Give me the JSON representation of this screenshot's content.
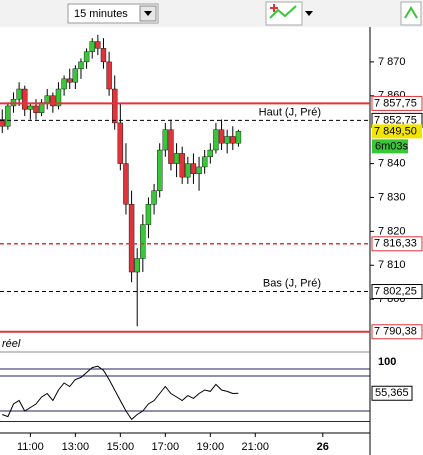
{
  "toolbar": {
    "timeframe": "15 minutes"
  },
  "chart_data": [
    {
      "type": "candlestick",
      "note": "réel",
      "up_color": "#39c639",
      "down_color": "#e0333a",
      "x": [
        9.75,
        10,
        10.25,
        10.5,
        10.75,
        11,
        11.25,
        11.5,
        11.75,
        12,
        12.25,
        12.5,
        12.75,
        13,
        13.25,
        13.5,
        13.75,
        14,
        14.25,
        14.5,
        14.75,
        15,
        15.25,
        15.5,
        15.75,
        16,
        16.25,
        16.5,
        16.75,
        17,
        17.25,
        17.5,
        17.75,
        18,
        18.25,
        18.5,
        18.75,
        19,
        19.25,
        19.5,
        19.75,
        20,
        20.25
      ],
      "open": [
        7853,
        7851,
        7857,
        7859,
        7862,
        7856,
        7857,
        7855,
        7858,
        7860,
        7857,
        7862,
        7865,
        7864,
        7868,
        7870,
        7873,
        7876,
        7874,
        7870,
        7862,
        7852,
        7840,
        7828,
        7808,
        7812,
        7822,
        7828,
        7832,
        7844,
        7850,
        7840,
        7843,
        7836,
        7840,
        7837,
        7839,
        7842,
        7844,
        7850,
        7846,
        7848,
        7846
      ],
      "high": [
        7856,
        7858,
        7861,
        7864,
        7863,
        7858,
        7859,
        7859,
        7862,
        7861,
        7864,
        7866,
        7868,
        7869,
        7871,
        7874,
        7877,
        7878,
        7877,
        7873,
        7866,
        7858,
        7846,
        7832,
        7815,
        7825,
        7830,
        7834,
        7846,
        7852,
        7853,
        7846,
        7845,
        7842,
        7843,
        7842,
        7844,
        7846,
        7852,
        7853,
        7850,
        7851,
        7850
      ],
      "low": [
        7849,
        7850,
        7855,
        7857,
        7854,
        7853,
        7853,
        7854,
        7856,
        7855,
        7856,
        7860,
        7862,
        7862,
        7865,
        7868,
        7871,
        7872,
        7868,
        7860,
        7850,
        7838,
        7825,
        7805,
        7792,
        7808,
        7818,
        7825,
        7830,
        7842,
        7838,
        7836,
        7834,
        7834,
        7834,
        7832,
        7837,
        7840,
        7843,
        7844,
        7843,
        7844,
        7845
      ],
      "close": [
        7851,
        7857,
        7859,
        7862,
        7856,
        7857,
        7855,
        7858,
        7860,
        7857,
        7862,
        7865,
        7864,
        7868,
        7870,
        7873,
        7876,
        7874,
        7870,
        7862,
        7852,
        7840,
        7828,
        7808,
        7812,
        7822,
        7828,
        7832,
        7844,
        7850,
        7840,
        7843,
        7836,
        7840,
        7837,
        7839,
        7842,
        7844,
        7850,
        7846,
        7848,
        7846,
        7849.5
      ],
      "xlim": [
        9.65,
        26.1
      ],
      "xticks": [
        {
          "value": 11,
          "label": "11:00"
        },
        {
          "value": 13,
          "label": "13:00"
        },
        {
          "value": 15,
          "label": "15:00"
        },
        {
          "value": 17,
          "label": "17:00"
        },
        {
          "value": 19,
          "label": "19:00"
        },
        {
          "value": 21,
          "label": "21:00"
        },
        {
          "value": 24,
          "label": "26"
        }
      ],
      "ylim": [
        7785,
        7880
      ],
      "yticks": [
        {
          "value": 7800,
          "label": "7 800"
        },
        {
          "value": 7810,
          "label": "7 810"
        },
        {
          "value": 7820,
          "label": "7 820"
        },
        {
          "value": 7830,
          "label": "7 830"
        },
        {
          "value": 7840,
          "label": "7 840"
        },
        {
          "value": 7860,
          "label": "7 860"
        },
        {
          "value": 7870,
          "label": "7 870"
        }
      ],
      "levels": [
        {
          "value": 7857.75,
          "label": "7 857,75",
          "style": "solid",
          "color": "#e0333a"
        },
        {
          "value": 7852.75,
          "label": "7 852,75",
          "name": "Haut (J, Pré)",
          "style": "dashed",
          "color": "#000000"
        },
        {
          "value": 7816.33,
          "label": "7 816,33",
          "style": "dashed",
          "color": "#e0333a"
        },
        {
          "value": 7802.25,
          "label": "7 802,25",
          "name": "Bas (J, Pré)",
          "style": "dashed",
          "color": "#000000"
        },
        {
          "value": 7790.38,
          "label": "7 790,38",
          "style": "solid",
          "color": "#e0333a"
        }
      ],
      "last_price": {
        "value": 7849.5,
        "label": "7 849,50",
        "color": "#f2e600"
      },
      "timer": {
        "label": "6m03s",
        "color": "#39c639"
      }
    },
    {
      "type": "line",
      "color": "#000000",
      "level_color": "#23235e",
      "values": [
        25,
        22,
        40,
        45,
        30,
        35,
        40,
        50,
        55,
        45,
        60,
        70,
        65,
        75,
        78,
        85,
        92,
        94,
        88,
        75,
        60,
        45,
        30,
        18,
        25,
        30,
        40,
        45,
        55,
        65,
        55,
        50,
        45,
        52,
        48,
        55,
        60,
        58,
        68,
        60,
        58,
        55,
        55.365
      ],
      "value_labels": [
        null,
        null,
        null,
        null,
        null,
        null,
        null,
        null,
        null,
        null,
        null,
        null,
        null,
        null,
        null,
        null,
        null,
        null,
        null,
        null,
        null,
        null,
        null,
        null,
        null,
        null,
        null,
        null,
        null,
        null,
        null,
        null,
        null,
        null,
        null,
        null,
        null,
        null,
        null,
        null,
        null,
        null,
        "55,365"
      ],
      "ylim": [
        0,
        100
      ],
      "yticks": [
        100
      ],
      "levels": [
        90,
        80,
        30,
        15
      ]
    }
  ]
}
